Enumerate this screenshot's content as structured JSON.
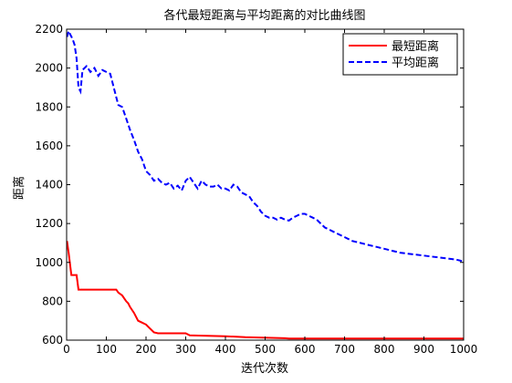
{
  "chart_data": {
    "type": "line",
    "title": "各代最短距离与平均距离的对比曲线图",
    "xlabel": "迭代次数",
    "ylabel": "距离",
    "xlim": [
      0,
      1000
    ],
    "ylim": [
      600,
      2200
    ],
    "xticks": [
      0,
      100,
      200,
      300,
      400,
      500,
      600,
      700,
      800,
      900,
      1000
    ],
    "yticks": [
      600,
      800,
      1000,
      1200,
      1400,
      1600,
      1800,
      2000,
      2200
    ],
    "grid": false,
    "legend_position": "top-right",
    "series": [
      {
        "name": "最短距离",
        "color": "#ff0000",
        "style": "solid",
        "x": [
          1,
          5,
          8,
          12,
          25,
          30,
          60,
          100,
          125,
          130,
          140,
          150,
          155,
          160,
          170,
          180,
          190,
          200,
          210,
          220,
          230,
          300,
          310,
          400,
          450,
          550,
          560,
          1000
        ],
        "y": [
          1110,
          1050,
          1000,
          935,
          935,
          860,
          860,
          860,
          860,
          845,
          830,
          800,
          790,
          770,
          740,
          700,
          690,
          680,
          660,
          640,
          635,
          635,
          625,
          620,
          615,
          610,
          608,
          608
        ]
      },
      {
        "name": "平均距离",
        "color": "#0000ff",
        "style": "dashed",
        "x": [
          1,
          5,
          10,
          15,
          20,
          25,
          30,
          35,
          40,
          50,
          60,
          70,
          80,
          90,
          100,
          110,
          115,
          120,
          130,
          140,
          150,
          160,
          170,
          180,
          190,
          200,
          210,
          220,
          230,
          240,
          250,
          260,
          270,
          280,
          290,
          300,
          310,
          320,
          330,
          340,
          350,
          360,
          370,
          380,
          390,
          400,
          410,
          420,
          430,
          440,
          450,
          460,
          470,
          480,
          490,
          500,
          510,
          520,
          530,
          540,
          550,
          560,
          570,
          580,
          590,
          600,
          610,
          620,
          630,
          640,
          650,
          660,
          670,
          680,
          690,
          700,
          720,
          740,
          760,
          780,
          800,
          820,
          840,
          860,
          880,
          900,
          920,
          940,
          960,
          980,
          1000
        ],
        "y": [
          2160,
          2190,
          2170,
          2150,
          2120,
          2050,
          1900,
          1880,
          1990,
          2010,
          1980,
          2000,
          1960,
          1990,
          1980,
          1970,
          1930,
          1890,
          1810,
          1800,
          1740,
          1680,
          1630,
          1570,
          1530,
          1470,
          1450,
          1420,
          1430,
          1410,
          1400,
          1410,
          1380,
          1395,
          1370,
          1420,
          1440,
          1410,
          1380,
          1420,
          1400,
          1390,
          1390,
          1400,
          1380,
          1380,
          1370,
          1400,
          1390,
          1360,
          1350,
          1340,
          1310,
          1290,
          1260,
          1240,
          1230,
          1230,
          1220,
          1230,
          1220,
          1215,
          1230,
          1240,
          1250,
          1250,
          1240,
          1230,
          1220,
          1200,
          1180,
          1170,
          1160,
          1150,
          1140,
          1130,
          1110,
          1100,
          1090,
          1080,
          1070,
          1060,
          1050,
          1045,
          1040,
          1035,
          1030,
          1025,
          1020,
          1015,
          1005
        ]
      }
    ]
  }
}
